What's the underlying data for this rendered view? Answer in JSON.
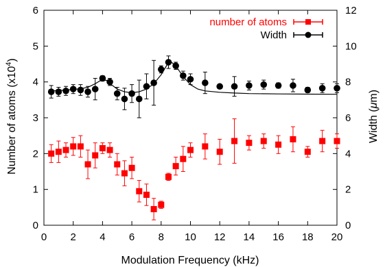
{
  "chart_data": {
    "type": "scatter",
    "xlabel": "Modulation Frequency (kHz)",
    "ylabel_left": "Number of atoms (x10",
    "ylabel_left_sup": "4",
    "ylabel_left_close": ")",
    "ylabel_right_prefix": "Width (",
    "ylabel_right_mu": "μ",
    "ylabel_right_suffix": "m)",
    "xlim": [
      0,
      20
    ],
    "ylim_left": [
      0,
      6
    ],
    "ylim_right": [
      0,
      12
    ],
    "x_ticks": [
      0,
      2,
      4,
      6,
      8,
      10,
      12,
      14,
      16,
      18,
      20
    ],
    "y_left_ticks": [
      0,
      1,
      2,
      3,
      4,
      5,
      6
    ],
    "y_right_ticks": [
      0,
      2,
      4,
      6,
      8,
      10,
      12
    ],
    "legend_position": "top-right",
    "series": [
      {
        "name": "number of atoms",
        "axis": "left",
        "color": "#ff0000",
        "marker": "square",
        "points": [
          {
            "x": 0.5,
            "y": 2.0,
            "err": 0.25
          },
          {
            "x": 1.0,
            "y": 2.05,
            "err": 0.3
          },
          {
            "x": 1.5,
            "y": 2.1,
            "err": 0.2
          },
          {
            "x": 2.0,
            "y": 2.2,
            "err": 0.25
          },
          {
            "x": 2.5,
            "y": 2.2,
            "err": 0.3
          },
          {
            "x": 3.0,
            "y": 1.7,
            "err": 0.4
          },
          {
            "x": 3.5,
            "y": 1.95,
            "err": 0.35
          },
          {
            "x": 4.0,
            "y": 2.15,
            "err": 0.15
          },
          {
            "x": 4.5,
            "y": 2.1,
            "err": 0.2
          },
          {
            "x": 5.0,
            "y": 1.7,
            "err": 0.3
          },
          {
            "x": 5.5,
            "y": 1.45,
            "err": 0.35
          },
          {
            "x": 6.0,
            "y": 1.6,
            "err": 0.3
          },
          {
            "x": 6.5,
            "y": 0.95,
            "err": 0.3
          },
          {
            "x": 7.0,
            "y": 0.85,
            "err": 0.3
          },
          {
            "x": 7.5,
            "y": 0.45,
            "err": 0.3
          },
          {
            "x": 8.0,
            "y": 0.57,
            "err": 0.1
          },
          {
            "x": 8.5,
            "y": 1.35,
            "err": 0.1
          },
          {
            "x": 9.0,
            "y": 1.65,
            "err": 0.25
          },
          {
            "x": 9.5,
            "y": 1.85,
            "err": 0.35
          },
          {
            "x": 10.0,
            "y": 2.1,
            "err": 0.2
          },
          {
            "x": 11.0,
            "y": 2.2,
            "err": 0.35
          },
          {
            "x": 12.0,
            "y": 2.05,
            "err": 0.35
          },
          {
            "x": 13.0,
            "y": 2.35,
            "err": 0.62
          },
          {
            "x": 14.0,
            "y": 2.3,
            "err": 0.2
          },
          {
            "x": 15.0,
            "y": 2.35,
            "err": 0.2
          },
          {
            "x": 16.0,
            "y": 2.25,
            "err": 0.25
          },
          {
            "x": 17.0,
            "y": 2.4,
            "err": 0.35
          },
          {
            "x": 18.0,
            "y": 2.05,
            "err": 0.15
          },
          {
            "x": 19.0,
            "y": 2.35,
            "err": 0.3
          },
          {
            "x": 20.0,
            "y": 2.35,
            "err": 0.2
          }
        ]
      },
      {
        "name": "Width",
        "axis": "right",
        "color": "#000000",
        "marker": "circle",
        "points": [
          {
            "x": 0.5,
            "y": 7.45,
            "err": 0.35
          },
          {
            "x": 1.0,
            "y": 7.45,
            "err": 0.25
          },
          {
            "x": 1.5,
            "y": 7.5,
            "err": 0.25
          },
          {
            "x": 2.0,
            "y": 7.6,
            "err": 0.25
          },
          {
            "x": 2.5,
            "y": 7.55,
            "err": 0.3
          },
          {
            "x": 3.0,
            "y": 7.45,
            "err": 0.3
          },
          {
            "x": 3.5,
            "y": 7.6,
            "err": 0.6
          },
          {
            "x": 4.0,
            "y": 8.2,
            "err": 0.15
          },
          {
            "x": 4.5,
            "y": 8.0,
            "err": 0.2
          },
          {
            "x": 5.0,
            "y": 7.35,
            "err": 0.35
          },
          {
            "x": 5.5,
            "y": 7.05,
            "err": 0.6
          },
          {
            "x": 6.0,
            "y": 7.35,
            "err": 0.5
          },
          {
            "x": 6.5,
            "y": 7.05,
            "err": 1.05
          },
          {
            "x": 7.0,
            "y": 7.75,
            "err": 0.7
          },
          {
            "x": 7.5,
            "y": 7.95,
            "err": 1.25
          },
          {
            "x": 8.0,
            "y": 8.7,
            "err": 0.2
          },
          {
            "x": 8.5,
            "y": 9.1,
            "err": 0.35
          },
          {
            "x": 9.0,
            "y": 8.9,
            "err": 0.2
          },
          {
            "x": 9.5,
            "y": 8.35,
            "err": 0.25
          },
          {
            "x": 10.0,
            "y": 8.15,
            "err": 0.3
          },
          {
            "x": 11.0,
            "y": 7.95,
            "err": 0.6
          },
          {
            "x": 12.0,
            "y": 7.75,
            "err": 0.1
          },
          {
            "x": 13.0,
            "y": 7.75,
            "err": 0.55
          },
          {
            "x": 14.0,
            "y": 7.8,
            "err": 0.25
          },
          {
            "x": 15.0,
            "y": 7.85,
            "err": 0.25
          },
          {
            "x": 16.0,
            "y": 7.8,
            "err": 0.15
          },
          {
            "x": 17.0,
            "y": 7.8,
            "err": 0.35
          },
          {
            "x": 18.0,
            "y": 7.55,
            "err": 0.15
          },
          {
            "x": 19.0,
            "y": 7.65,
            "err": 0.25
          },
          {
            "x": 20.0,
            "y": 7.65,
            "err": 0.25
          }
        ]
      }
    ],
    "fit_curve": {
      "axis": "right",
      "color": "#000000",
      "points": [
        [
          0.5,
          7.5
        ],
        [
          1.0,
          7.52
        ],
        [
          1.5,
          7.55
        ],
        [
          2.0,
          7.58
        ],
        [
          2.5,
          7.62
        ],
        [
          3.0,
          7.7
        ],
        [
          3.5,
          7.9
        ],
        [
          3.8,
          8.05
        ],
        [
          4.0,
          8.12
        ],
        [
          4.3,
          8.08
        ],
        [
          4.6,
          7.85
        ],
        [
          5.0,
          7.6
        ],
        [
          5.5,
          7.45
        ],
        [
          6.0,
          7.4
        ],
        [
          6.5,
          7.45
        ],
        [
          7.0,
          7.6
        ],
        [
          7.5,
          7.9
        ],
        [
          8.0,
          8.4
        ],
        [
          8.4,
          8.95
        ],
        [
          8.7,
          9.1
        ],
        [
          9.0,
          8.9
        ],
        [
          9.5,
          8.3
        ],
        [
          10.0,
          7.85
        ],
        [
          10.5,
          7.6
        ],
        [
          11.0,
          7.5
        ],
        [
          12.0,
          7.42
        ],
        [
          13.0,
          7.38
        ],
        [
          14.0,
          7.35
        ],
        [
          16.0,
          7.33
        ],
        [
          18.0,
          7.32
        ],
        [
          20.0,
          7.31
        ]
      ]
    }
  }
}
